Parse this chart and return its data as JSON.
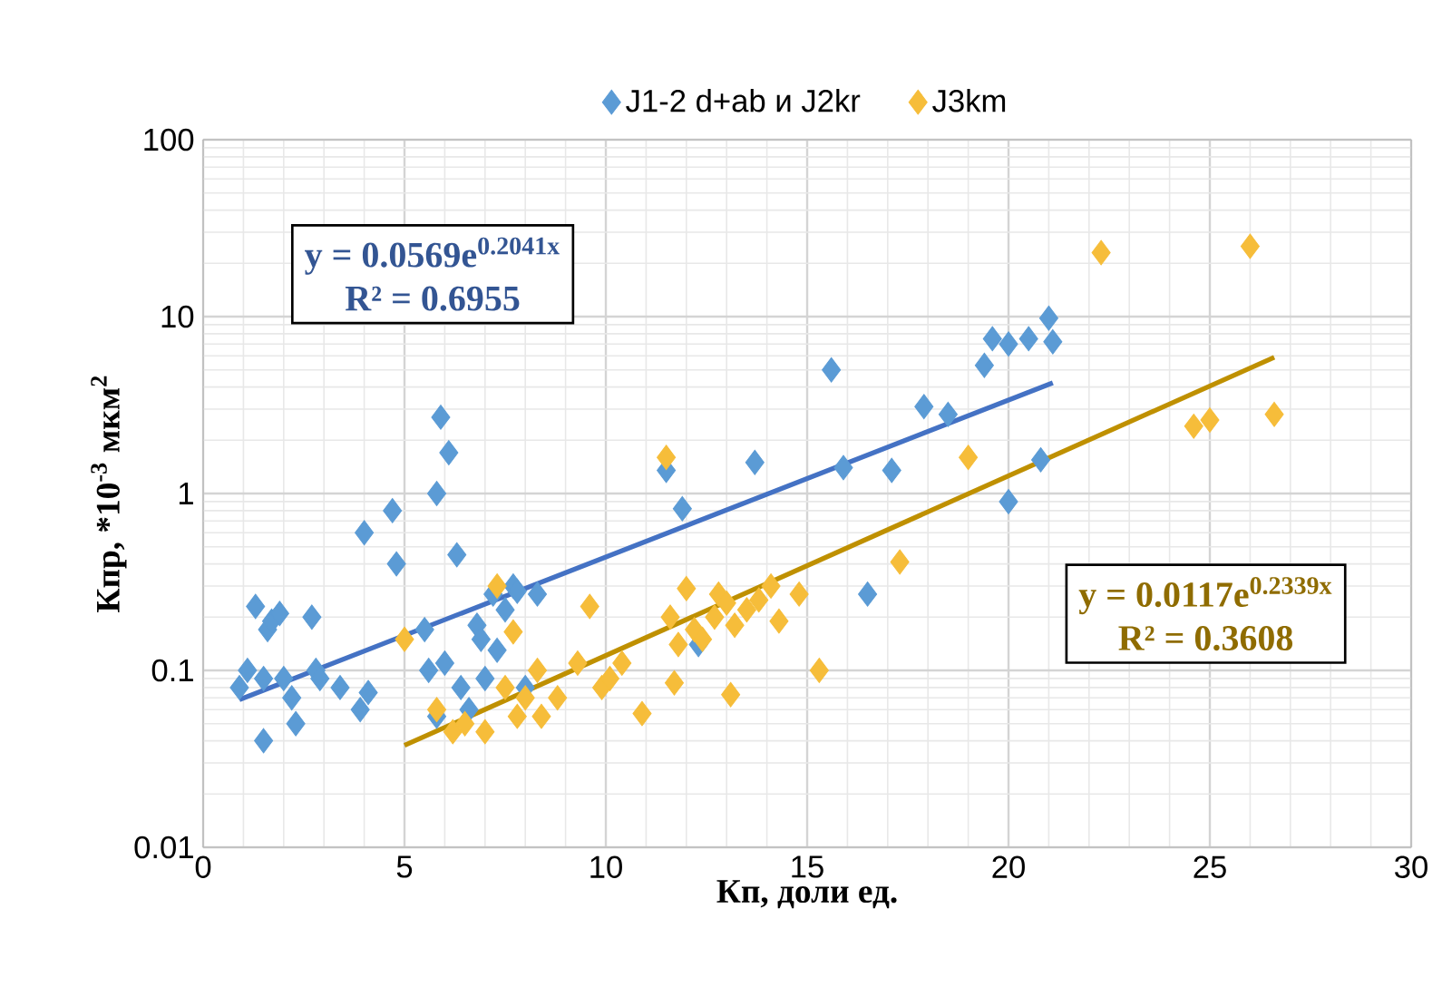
{
  "chart_data": {
    "type": "scatter",
    "xlabel": "Кп, доли ед.",
    "ylabel": "Кпр, *10$^{-3}$ мкм$^{2}$",
    "xlim": [
      0,
      30
    ],
    "xticks": [
      0,
      5,
      10,
      15,
      20,
      25,
      30
    ],
    "ylim": [
      0.01,
      100
    ],
    "yticks": [
      0.01,
      0.1,
      1,
      10,
      100
    ],
    "log": "y",
    "grid": true,
    "legend": "top",
    "marker": "diamond",
    "series": [
      {
        "name": "J1-2 d+ab и J2kr",
        "color": "#5b9bd5",
        "x": [
          0.9,
          1.1,
          1.3,
          1.5,
          1.6,
          1.7,
          1.9,
          2.0,
          1.5,
          2.2,
          2.3,
          2.7,
          2.8,
          2.9,
          3.4,
          3.9,
          4.1,
          4.0,
          4.7,
          4.8,
          5.5,
          5.6,
          5.8,
          5.8,
          5.9,
          6.1,
          6.3,
          6.0,
          6.4,
          6.6,
          6.8,
          6.9,
          7.0,
          7.2,
          7.3,
          7.5,
          7.7,
          7.8,
          8.0,
          8.3,
          11.5,
          11.9,
          12.3,
          13.7,
          15.6,
          15.9,
          16.5,
          17.1,
          17.9,
          18.5,
          19.4,
          19.6,
          20.0,
          20.0,
          20.5,
          20.8,
          21.0,
          21.1
        ],
        "values": [
          0.08,
          0.1,
          0.23,
          0.09,
          0.17,
          0.19,
          0.21,
          0.09,
          0.04,
          0.07,
          0.05,
          0.2,
          0.1,
          0.09,
          0.08,
          0.06,
          0.075,
          0.6,
          0.8,
          0.4,
          0.17,
          0.1,
          0.055,
          1.0,
          2.7,
          1.7,
          0.45,
          0.11,
          0.08,
          0.06,
          0.18,
          0.15,
          0.09,
          0.27,
          0.13,
          0.22,
          0.3,
          0.28,
          0.08,
          0.27,
          1.35,
          0.82,
          0.14,
          1.5,
          5.0,
          1.4,
          0.27,
          1.35,
          3.1,
          2.8,
          5.3,
          7.5,
          0.9,
          7.0,
          7.5,
          1.55,
          9.8,
          7.2
        ]
      },
      {
        "name": "J3km",
        "color": "#f6bd3a",
        "x": [
          5.0,
          5.8,
          6.2,
          6.5,
          7.0,
          7.3,
          7.5,
          7.7,
          7.8,
          8.0,
          8.3,
          8.4,
          8.8,
          9.3,
          9.6,
          9.9,
          10.1,
          10.4,
          10.9,
          11.5,
          11.6,
          11.7,
          11.8,
          12.0,
          12.2,
          12.4,
          12.7,
          12.8,
          13.0,
          13.1,
          13.2,
          13.5,
          13.8,
          14.1,
          14.3,
          14.8,
          15.3,
          17.3,
          19.0,
          22.3,
          24.6,
          25.0,
          26.0,
          26.6
        ],
        "values": [
          0.15,
          0.06,
          0.045,
          0.05,
          0.045,
          0.3,
          0.08,
          0.165,
          0.055,
          0.07,
          0.1,
          0.055,
          0.07,
          0.11,
          0.23,
          0.08,
          0.09,
          0.11,
          0.057,
          1.6,
          0.2,
          0.085,
          0.14,
          0.29,
          0.17,
          0.15,
          0.2,
          0.27,
          0.24,
          0.073,
          0.18,
          0.22,
          0.25,
          0.3,
          0.19,
          0.27,
          0.1,
          0.41,
          1.6,
          23,
          2.4,
          2.6,
          25,
          2.8
        ]
      },
      {
        "type": "line",
        "marker": "none",
        "color": "#4472c4",
        "x": [
          0.9,
          21.1
        ],
        "values": [
          0.0683,
          4.22
        ]
      },
      {
        "type": "line",
        "marker": "none",
        "color": "#bf9000",
        "x": [
          5.0,
          26.6
        ],
        "values": [
          0.0377,
          5.89
        ]
      }
    ],
    "annotations": [
      "y = 0.0569e$^{0.2041x}$",
      "R² = 0.6955",
      "y = 0.0117e$^{0.2339x}$",
      "R² = 0.3608"
    ]
  }
}
